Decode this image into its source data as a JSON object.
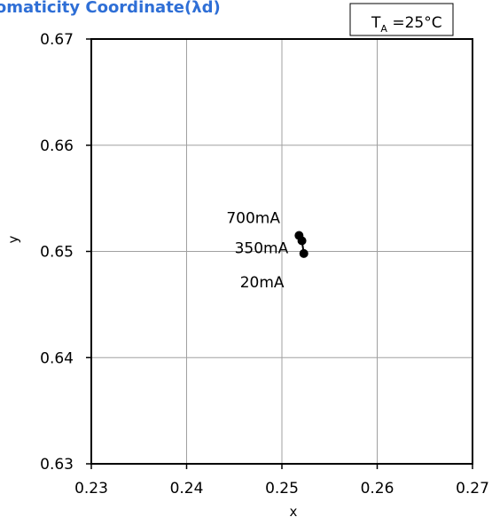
{
  "colors": {
    "title": "#2f6fd6",
    "grid": "#a0a0a0",
    "axis": "#000000",
    "marker": "#000000"
  },
  "condition": {
    "symbol": "T",
    "subscript": "A",
    "value": " =25°C"
  },
  "chart_data": {
    "type": "scatter",
    "title": "romaticity Coordinate(λd)",
    "xlabel": "x",
    "ylabel": "y",
    "xlim": [
      0.23,
      0.27
    ],
    "ylim": [
      0.63,
      0.67
    ],
    "x_ticks": [
      0.23,
      0.24,
      0.25,
      0.26,
      0.27
    ],
    "y_ticks": [
      0.63,
      0.64,
      0.65,
      0.66,
      0.67
    ],
    "x_tick_labels": [
      "0.23",
      "0.24",
      "0.25",
      "0.26",
      "0.27"
    ],
    "y_tick_labels": [
      "0.63",
      "0.64",
      "0.65",
      "0.66",
      "0.67"
    ],
    "grid": true,
    "connected": true,
    "points": [
      {
        "label": "700mA",
        "x": 0.2518,
        "y": 0.6515
      },
      {
        "label": "350mA",
        "x": 0.2521,
        "y": 0.651
      },
      {
        "label": "20mA",
        "x": 0.2523,
        "y": 0.6498
      }
    ]
  }
}
